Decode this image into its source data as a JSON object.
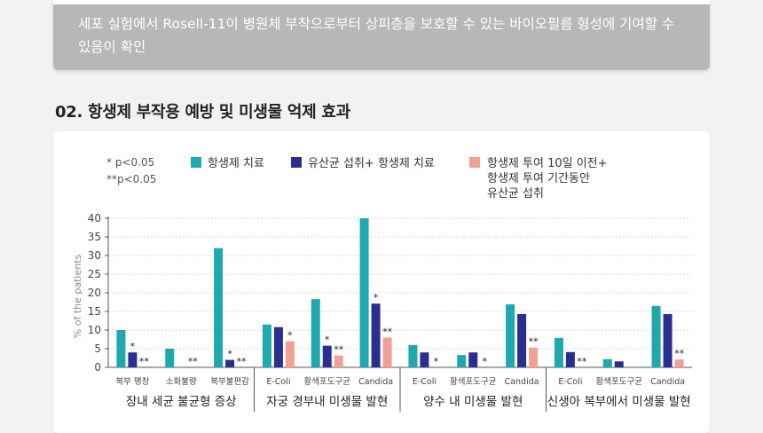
{
  "intro": {
    "text": "세포 실험에서 Rosell-11이 병원체 부착으로부터 상피층을 보호할 수 있는 바이오필름 형성에 기여할 수 있음이 확인"
  },
  "section": {
    "title": "02. 항생제 부작용 예방 및 미생물 억제 효과"
  },
  "colors": {
    "series1": "#1fa8ad",
    "series2": "#2a2e8f",
    "series3": "#f0a095"
  },
  "chart_data": {
    "type": "bar",
    "ylabel": "% of the patients",
    "ylim": [
      0,
      40
    ],
    "yticks": [
      0,
      5,
      10,
      15,
      20,
      25,
      30,
      35,
      40
    ],
    "significance_notes": [
      "* p<0.05",
      "**p<0.05"
    ],
    "legend": {
      "series1": "항생제 치료",
      "series2": "유산균 섭취+ 항생제 치료",
      "series3_lines": [
        "항생제 투여 10일 이전+",
        "항생제 투여 기간동안",
        "유산균 섭취"
      ]
    },
    "series": [
      {
        "name": "항생제 치료"
      },
      {
        "name": "유산균 섭취+ 항생제 치료"
      },
      {
        "name": "항생제 투여 10일 이전+ 항생제 투여 기간동안 유산균 섭취"
      }
    ],
    "groups": [
      {
        "label": "장내 세균 불균형 증상",
        "categories": [
          {
            "label": "복부 팽창",
            "values": [
              10,
              4,
              0
            ],
            "marks": [
              "",
              "*",
              "**"
            ]
          },
          {
            "label": "소화불량",
            "values": [
              5,
              0,
              0
            ],
            "marks": [
              "",
              "",
              "**"
            ]
          },
          {
            "label": "복부불편감",
            "values": [
              32,
              2,
              0
            ],
            "marks": [
              "",
              "*",
              "**"
            ]
          }
        ]
      },
      {
        "label": "자궁 경부내 미생물 발현",
        "categories": [
          {
            "label": "E-Coli",
            "values": [
              11.5,
              10.8,
              7
            ],
            "marks": [
              "",
              "",
              "*"
            ]
          },
          {
            "label": "황색포도구균",
            "values": [
              18.3,
              5.8,
              3.2
            ],
            "marks": [
              "",
              "*",
              "**"
            ]
          },
          {
            "label": "Candida",
            "values": [
              40,
              17.1,
              8
            ],
            "marks": [
              "",
              "*",
              "**"
            ]
          }
        ]
      },
      {
        "label": "양수 내 미생물 발현",
        "categories": [
          {
            "label": "E-Coli",
            "values": [
              6,
              4,
              0
            ],
            "marks": [
              "",
              "",
              "*"
            ]
          },
          {
            "label": "황색포도구균",
            "values": [
              3.3,
              4,
              0
            ],
            "marks": [
              "",
              "",
              "*"
            ]
          },
          {
            "label": "Candida",
            "values": [
              16.9,
              14.3,
              5.3
            ],
            "marks": [
              "",
              "",
              "**"
            ]
          }
        ]
      },
      {
        "label": "신생아 복부에서 미생물 발현",
        "categories": [
          {
            "label": "E-Coli",
            "values": [
              7.9,
              4.1,
              0
            ],
            "marks": [
              "",
              "",
              "**"
            ]
          },
          {
            "label": "황색포도구균",
            "values": [
              2.2,
              1.6,
              0
            ],
            "marks": [
              "",
              "",
              ""
            ]
          },
          {
            "label": "Candida",
            "values": [
              16.5,
              14.3,
              2.1
            ],
            "marks": [
              "",
              "",
              "**"
            ]
          }
        ]
      }
    ]
  }
}
